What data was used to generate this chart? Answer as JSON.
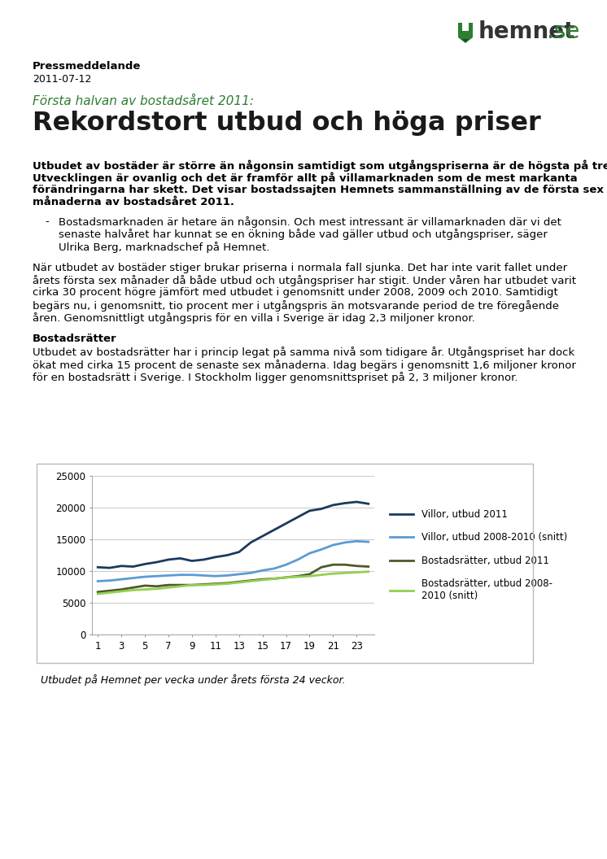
{
  "press_label": "Pressmeddelande",
  "date_label": "2011-07-12",
  "subtitle": "Första halvan av bostadsåret 2011:",
  "title": "Rekordstort utbud och höga priser",
  "bold_lines": [
    "Utbudet av bostäder är större än någonsin samtidigt som utgångspriserna är de högsta på tre år.",
    "Utvecklingen är ovanlig och det är framför allt på villamarknaden som de mest markanta",
    "förändringarna har skett. Det visar bostadssajten Hemnets sammanställning av de första sex",
    "månaderna av bostadsåret 2011."
  ],
  "bullet_dash": "-",
  "bullet_lines": [
    "Bostadsmarknaden är hetare än någonsin. Och mest intressant är villamarknaden där vi det",
    "senaste halvåret har kunnat se en ökning både vad gäller utbud och utgångspriser, säger",
    "Ulrika Berg, marknadschef på Hemnet."
  ],
  "para1_lines": [
    "När utbudet av bostäder stiger brukar priserna i normala fall sjunka. Det har inte varit fallet under",
    "årets första sex månader då både utbud och utgångspriser har stigit. Under våren har utbudet varit",
    "cirka 30 procent högre jämfört med utbudet i genomsnitt under 2008, 2009 och 2010. Samtidigt",
    "begärs nu, i genomsnitt, tio procent mer i utgångspris än motsvarande period de tre föregående",
    "åren. Genomsnittligt utgångspris för en villa i Sverige är idag 2,3 miljoner kronor."
  ],
  "section_title": "Bostadsrätter",
  "para2_lines": [
    "Utbudet av bostadsrätter har i princip legat på samma nivå som tidigare år. Utgångspriset har dock",
    "ökat med cirka 15 procent de senaste sex månaderna. Idag begärs i genomsnitt 1,6 miljoner kronor",
    "för en bostadsrätt i Sverige. I Stockholm ligger genomsnittspriset på 2, 3 miljoner kronor."
  ],
  "chart_caption": "Utbudet på Hemnet per vecka under årets första 24 veckor.",
  "weeks": [
    1,
    2,
    3,
    4,
    5,
    6,
    7,
    8,
    9,
    10,
    11,
    12,
    13,
    14,
    15,
    16,
    17,
    18,
    19,
    20,
    21,
    22,
    23,
    24
  ],
  "villor_2011": [
    10600,
    10500,
    10800,
    10700,
    11100,
    11400,
    11800,
    12000,
    11600,
    11800,
    12200,
    12500,
    13000,
    14500,
    15500,
    16500,
    17500,
    18500,
    19500,
    19800,
    20400,
    20700,
    20900,
    20600
  ],
  "villor_snitt": [
    8400,
    8500,
    8700,
    8900,
    9100,
    9200,
    9300,
    9400,
    9400,
    9300,
    9200,
    9300,
    9500,
    9700,
    10100,
    10400,
    11000,
    11800,
    12800,
    13400,
    14100,
    14500,
    14700,
    14600
  ],
  "bost_2011": [
    6700,
    6900,
    7100,
    7400,
    7700,
    7600,
    7800,
    7800,
    7800,
    7900,
    8000,
    8100,
    8300,
    8500,
    8700,
    8800,
    9000,
    9200,
    9500,
    10600,
    11000,
    11000,
    10800,
    10700
  ],
  "bost_snitt": [
    6400,
    6600,
    6800,
    7000,
    7100,
    7200,
    7400,
    7600,
    7800,
    7800,
    7900,
    8000,
    8200,
    8400,
    8600,
    8800,
    9000,
    9100,
    9200,
    9400,
    9600,
    9700,
    9800,
    9900
  ],
  "color_villor_2011": "#1a3a5c",
  "color_villor_snitt": "#5b9bd5",
  "color_bost_2011": "#4d5a2a",
  "color_bost_snitt": "#92d050",
  "green_color": "#2e7d32",
  "hemnet_green": "#2e7d32",
  "legend_labels": [
    "Villor, utbud 2011",
    "Villor, utbud 2008-2010 (snitt)",
    "Bostadsrätter, utbud 2011",
    "Bostadsrätter, utbud 2008-\n2010 (snitt)"
  ],
  "ylim": [
    0,
    25000
  ],
  "yticks": [
    0,
    5000,
    10000,
    15000,
    20000,
    25000
  ],
  "xtick_labels": [
    "1",
    "3",
    "5",
    "7",
    "9",
    "11",
    "13",
    "15",
    "17",
    "19",
    "21",
    "23"
  ],
  "xtick_positions": [
    1,
    3,
    5,
    7,
    9,
    11,
    13,
    15,
    17,
    19,
    21,
    23
  ]
}
